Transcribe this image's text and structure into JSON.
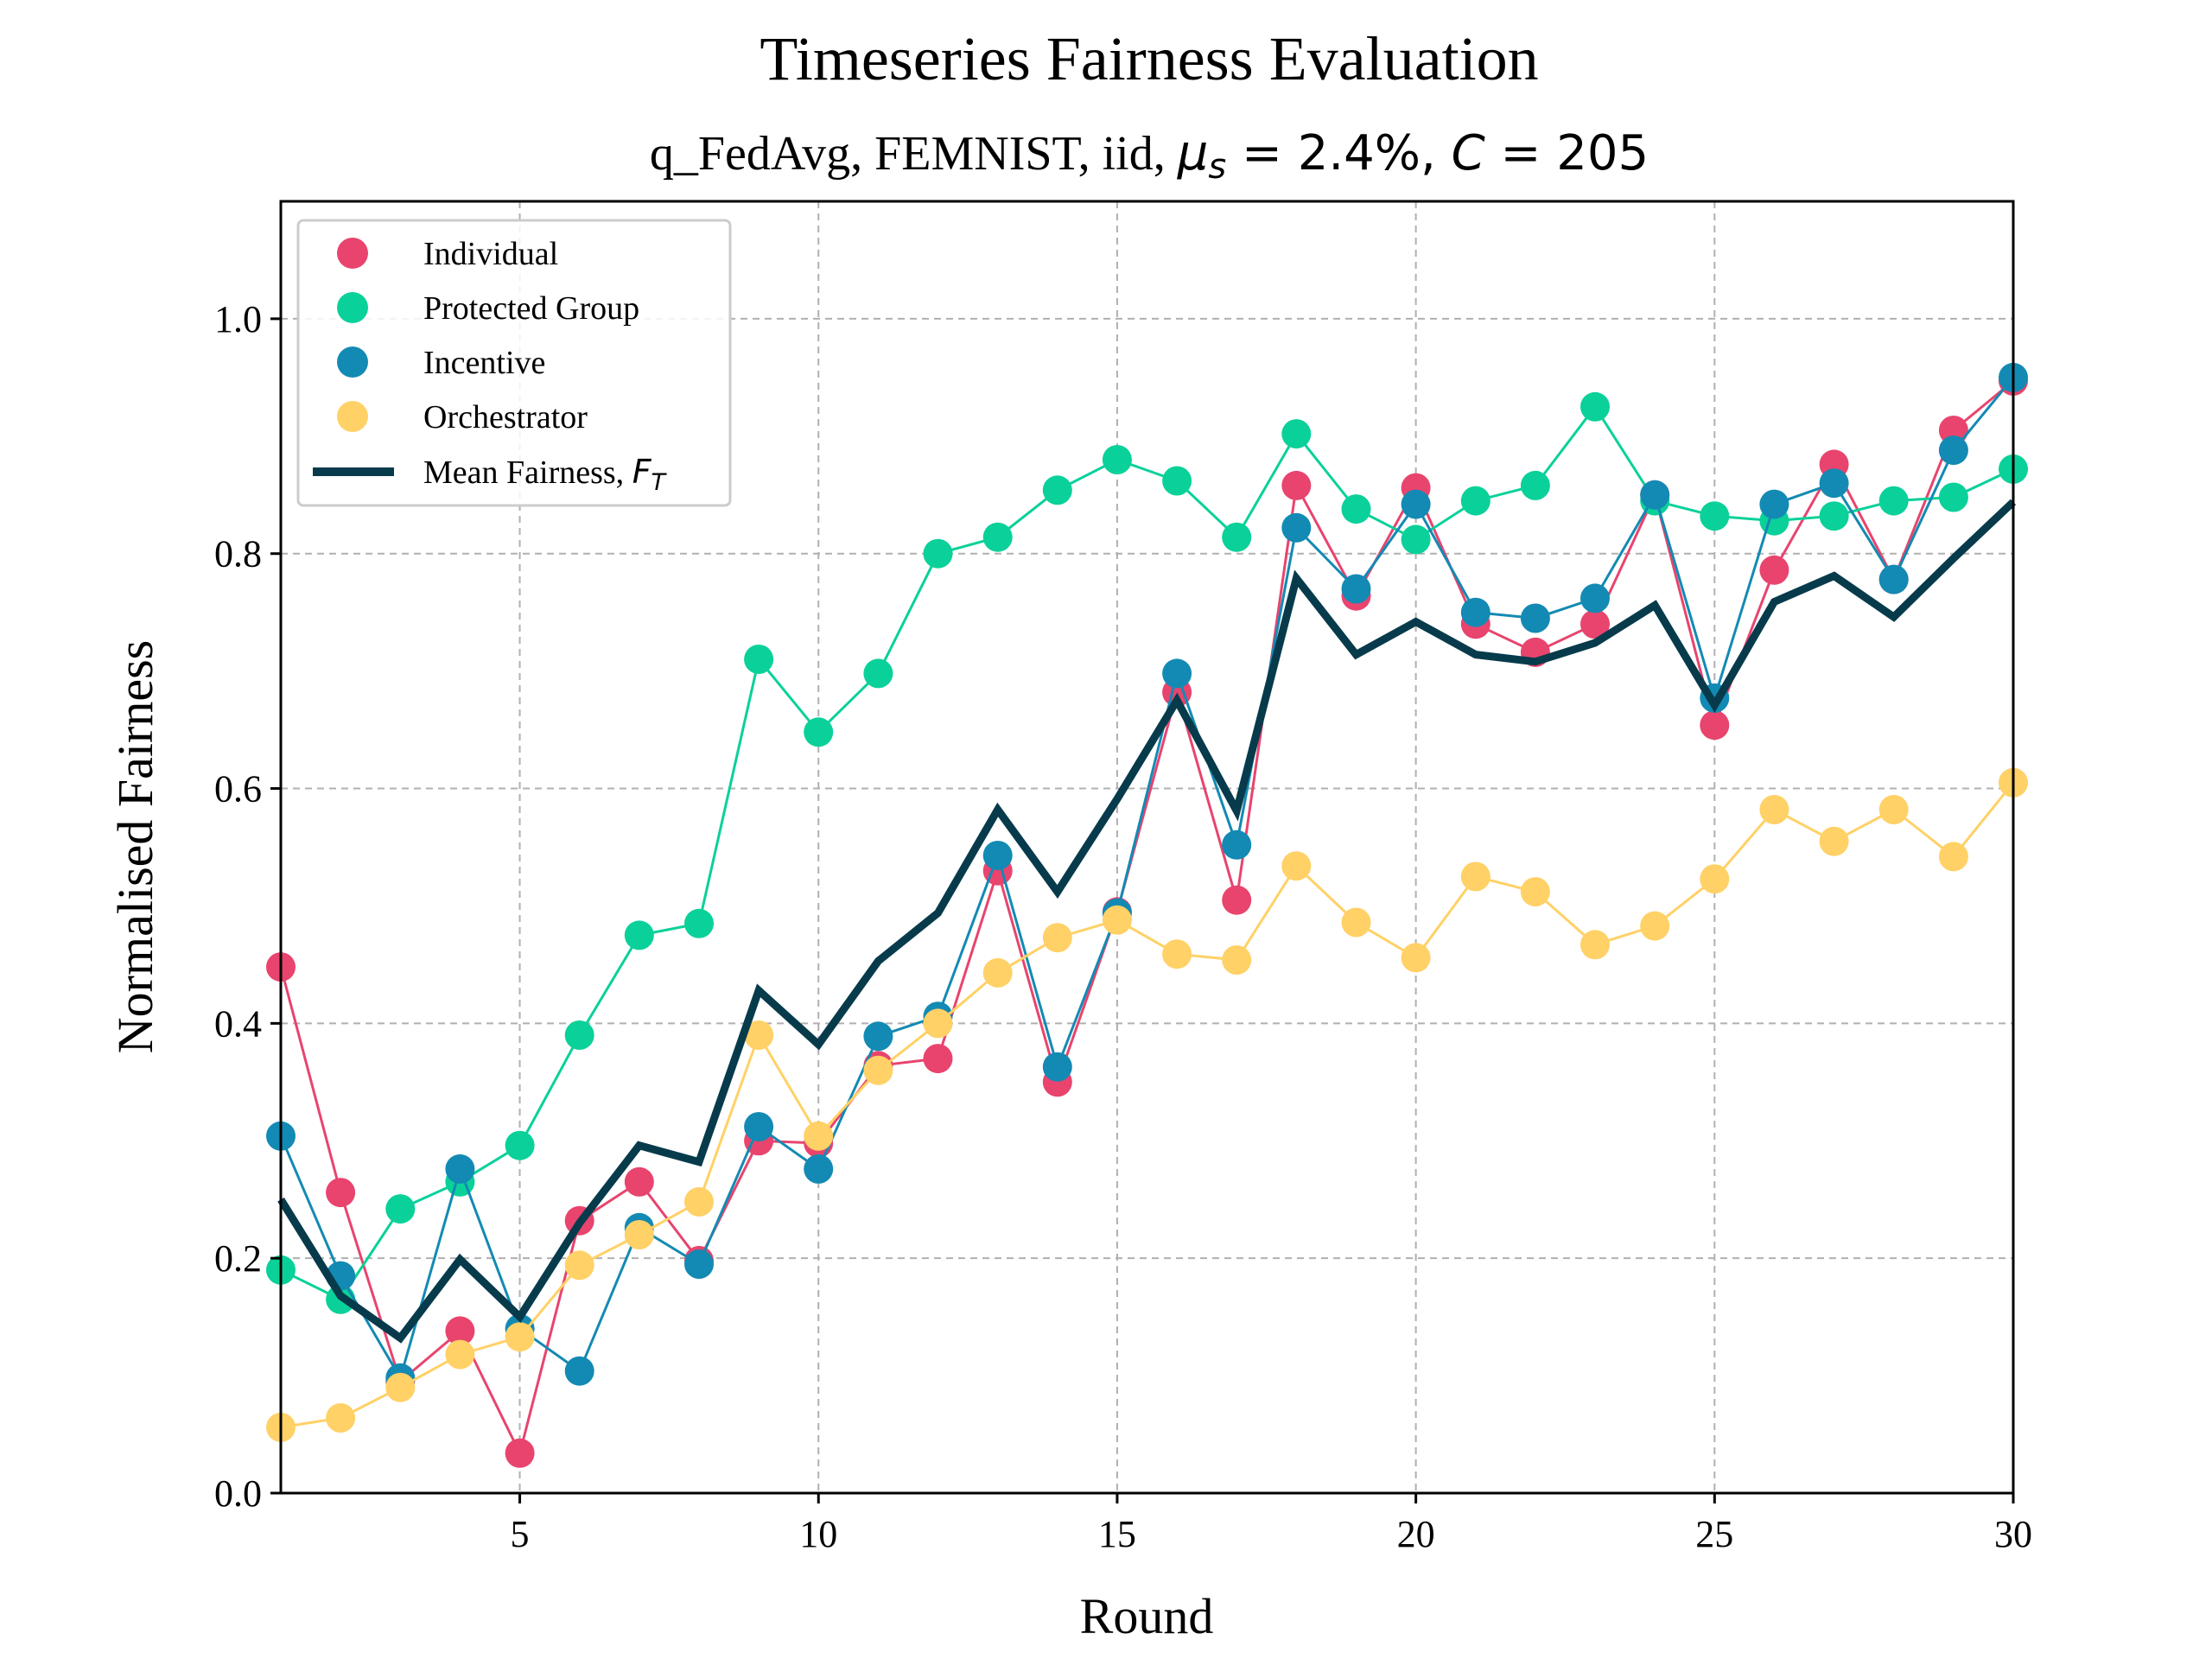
{
  "chart_data": {
    "type": "line",
    "title": "Timeseries Fairness Evaluation",
    "subtitle_prefix": "q_FedAvg, FEMNIST, iid, ",
    "subtitle_math": {
      "mu": "μ",
      "sub_s": "s",
      "eq1": " = 2.4%, ",
      "c": "C",
      "eq2": " = 205"
    },
    "xlabel": "Round",
    "ylabel": "Normalised Fairness",
    "xlim": [
      1,
      30
    ],
    "ylim": [
      0,
      1.1
    ],
    "xticks": [
      5,
      10,
      15,
      20,
      25,
      30
    ],
    "yticks": [
      0.0,
      0.2,
      0.4,
      0.6,
      0.8,
      1.0
    ],
    "xtick_labels": [
      "5",
      "10",
      "15",
      "20",
      "25",
      "30"
    ],
    "ytick_labels": [
      "0.0",
      "0.2",
      "0.4",
      "0.6",
      "0.8",
      "1.0"
    ],
    "grid": true,
    "legend": "top-left",
    "x": [
      1,
      2,
      3,
      4,
      5,
      6,
      7,
      8,
      9,
      10,
      11,
      12,
      13,
      14,
      15,
      16,
      17,
      18,
      19,
      20,
      21,
      22,
      23,
      24,
      25,
      26,
      27,
      28,
      29,
      30
    ],
    "series": [
      {
        "name": "Individual",
        "color": "#e8446e",
        "style": "markers",
        "values": [
          0.448,
          0.256,
          0.095,
          0.138,
          0.034,
          0.232,
          0.265,
          0.198,
          0.3,
          0.298,
          0.364,
          0.37,
          0.53,
          0.35,
          0.495,
          0.682,
          0.505,
          0.858,
          0.764,
          0.856,
          0.74,
          0.716,
          0.74,
          0.85,
          0.654,
          0.786,
          0.876,
          0.778,
          0.905,
          0.947
        ]
      },
      {
        "name": "Protected Group",
        "color": "#0ad199",
        "style": "markers",
        "values": [
          0.19,
          0.165,
          0.242,
          0.265,
          0.296,
          0.39,
          0.475,
          0.485,
          0.71,
          0.648,
          0.698,
          0.8,
          0.814,
          0.854,
          0.88,
          0.862,
          0.814,
          0.902,
          0.838,
          0.812,
          0.845,
          0.858,
          0.925,
          0.845,
          0.832,
          0.828,
          0.832,
          0.845,
          0.848,
          0.872
        ]
      },
      {
        "name": "Incentive",
        "color": "#138ab3",
        "style": "markers",
        "values": [
          0.304,
          0.185,
          0.098,
          0.276,
          0.14,
          0.104,
          0.226,
          0.195,
          0.312,
          0.276,
          0.389,
          0.406,
          0.543,
          0.363,
          0.494,
          0.698,
          0.552,
          0.822,
          0.77,
          0.842,
          0.75,
          0.745,
          0.762,
          0.85,
          0.677,
          0.842,
          0.86,
          0.778,
          0.888,
          0.95
        ]
      },
      {
        "name": "Orchestrator",
        "color": "#ffd166",
        "style": "markers",
        "values": [
          0.056,
          0.064,
          0.09,
          0.118,
          0.133,
          0.194,
          0.22,
          0.248,
          0.39,
          0.304,
          0.36,
          0.4,
          0.443,
          0.473,
          0.488,
          0.459,
          0.454,
          0.534,
          0.486,
          0.456,
          0.525,
          0.512,
          0.467,
          0.483,
          0.523,
          0.582,
          0.555,
          0.582,
          0.542,
          0.605
        ]
      },
      {
        "name_prefix": "Mean Fairness, ",
        "name_math": "F",
        "name_sub": "T",
        "color": "#073b4c",
        "style": "thick-line",
        "values": [
          0.25,
          0.168,
          0.132,
          0.199,
          0.15,
          0.23,
          0.296,
          0.282,
          0.428,
          0.382,
          0.453,
          0.494,
          0.582,
          0.512,
          0.591,
          0.675,
          0.581,
          0.779,
          0.714,
          0.742,
          0.714,
          0.708,
          0.724,
          0.756,
          0.671,
          0.759,
          0.781,
          0.746,
          0.796,
          0.844
        ]
      }
    ]
  }
}
